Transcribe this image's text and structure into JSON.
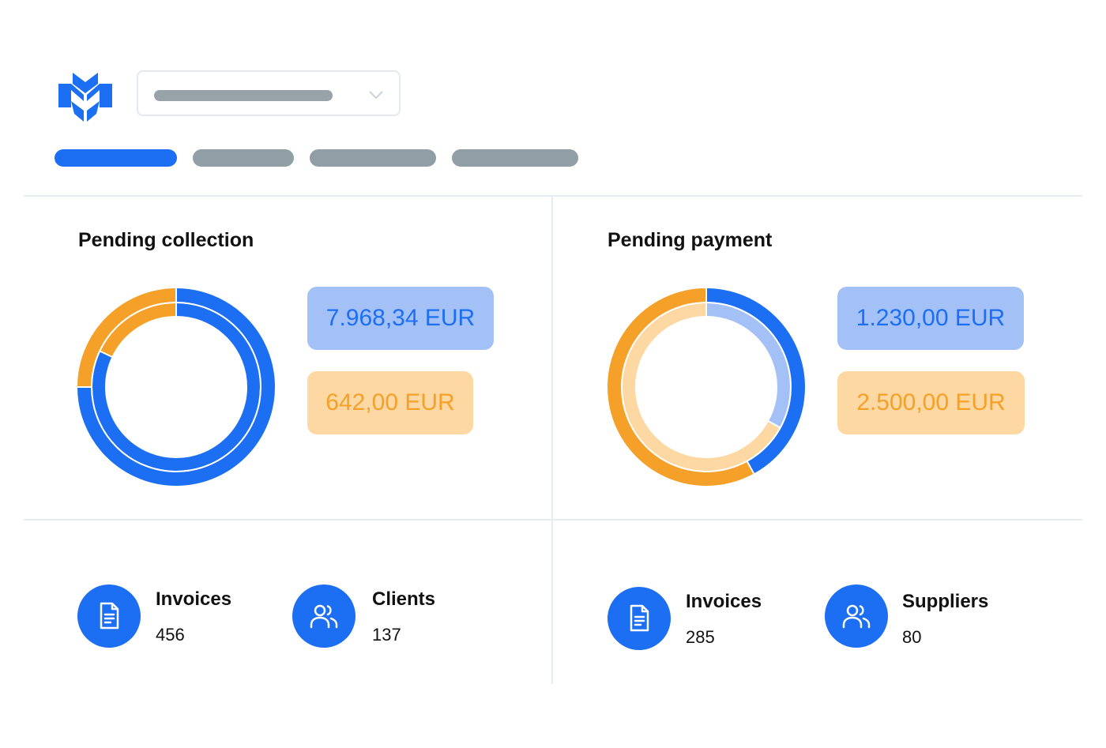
{
  "header": {
    "logo_icon": "brand-logo-icon",
    "dropdown_icon": "chevron-down-icon",
    "tabs": [
      {
        "id": "tab-1",
        "active": true
      },
      {
        "id": "tab-2",
        "active": false
      },
      {
        "id": "tab-3",
        "active": false
      },
      {
        "id": "tab-4",
        "active": false
      }
    ]
  },
  "colors": {
    "accent_blue": "#1c6ef2",
    "light_blue": "#a3c1f7",
    "accent_orange": "#f5a028",
    "light_orange": "#fdd8a2",
    "placeholder_gray": "#8f9fa5"
  },
  "collection": {
    "title": "Pending collection",
    "amount_blue": "7.968,34 EUR",
    "amount_orange": "642,00 EUR",
    "invoices_label": "Invoices",
    "invoices_value": "456",
    "clients_label": "Clients",
    "clients_value": "137"
  },
  "payment": {
    "title": "Pending payment",
    "amount_blue": "1.230,00 EUR",
    "amount_orange": "2.500,00 EUR",
    "invoices_label": "Invoices",
    "invoices_value": "285",
    "suppliers_label": "Suppliers",
    "suppliers_value": "80"
  },
  "chart_data": [
    {
      "type": "pie",
      "chart": "Pending collection",
      "outer_ring": [
        {
          "name": "7.968,34 EUR",
          "value": 0.75,
          "color": "#1c6ef2"
        },
        {
          "name": "642,00 EUR",
          "value": 0.25,
          "color": "#f5a028"
        }
      ],
      "inner_ring": [
        {
          "value": 0.82,
          "color": "#1c6ef2"
        },
        {
          "value": 0.18,
          "color": "#f5a028"
        }
      ]
    },
    {
      "type": "pie",
      "chart": "Pending payment",
      "outer_ring": [
        {
          "name": "1.230,00 EUR",
          "value": 0.42,
          "color": "#1c6ef2"
        },
        {
          "name": "2.500,00 EUR",
          "value": 0.58,
          "color": "#f5a028"
        }
      ],
      "inner_ring": [
        {
          "value": 0.33,
          "color": "#a3c1f7"
        },
        {
          "value": 0.67,
          "color": "#fdd8a2"
        }
      ]
    }
  ]
}
